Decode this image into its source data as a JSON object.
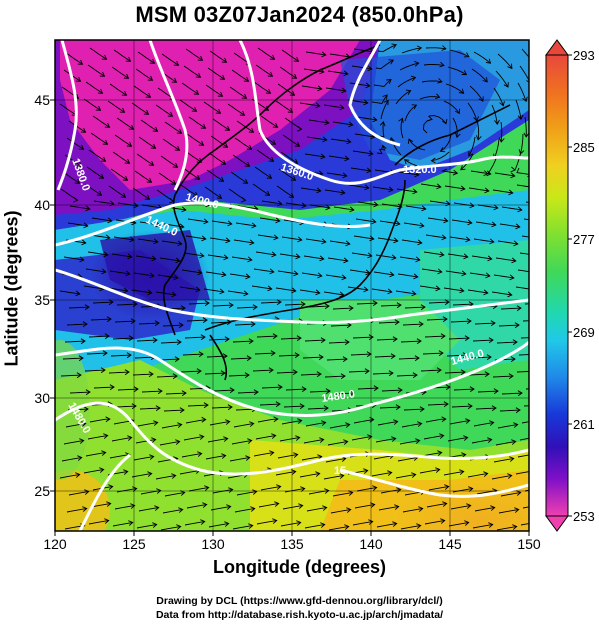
{
  "title": "MSM 03Z07Jan2024 (850.0hPa)",
  "xlabel": "Longitude (degrees)",
  "ylabel": "Latitude  (degrees)",
  "x_ticks": [
    "120",
    "125",
    "130",
    "135",
    "140",
    "145",
    "150"
  ],
  "y_ticks": [
    "25",
    "30",
    "35",
    "40",
    "45"
  ],
  "colorbar": {
    "ticks": [
      "293",
      "285",
      "277",
      "269",
      "261",
      "253"
    ],
    "colors": [
      "#e8483c",
      "#f07020",
      "#f0a018",
      "#f0d020",
      "#c8e818",
      "#80e030",
      "#40d858",
      "#20d8b0",
      "#20c8e8",
      "#2088e8",
      "#1838d8",
      "#3010b8",
      "#8010c8",
      "#d010b0",
      "#f040b0"
    ]
  },
  "contour_labels": [
    "1320.0",
    "1360.0",
    "1400.0",
    "1440.0",
    "1380.0",
    "1440.0",
    "1480.0",
    "1480.0",
    "15"
  ],
  "footer": {
    "line1": "Drawing by DCL (https://www.gfd-dennou.org/library/dcl/)",
    "line2": "Data from http://database.rish.kyoto-u.ac.jp/arch/jmadata/"
  },
  "chart_data": {
    "type": "heatmap",
    "variable": "temperature",
    "level": "850.0hPa",
    "xlim": [
      120,
      150
    ],
    "ylim": [
      22.5,
      48
    ],
    "clim": [
      253,
      293
    ],
    "contours_geopotential_m": [
      1320,
      1360,
      1380,
      1400,
      1440,
      1480,
      1500
    ],
    "grid": true,
    "legend": "right colorbar"
  }
}
